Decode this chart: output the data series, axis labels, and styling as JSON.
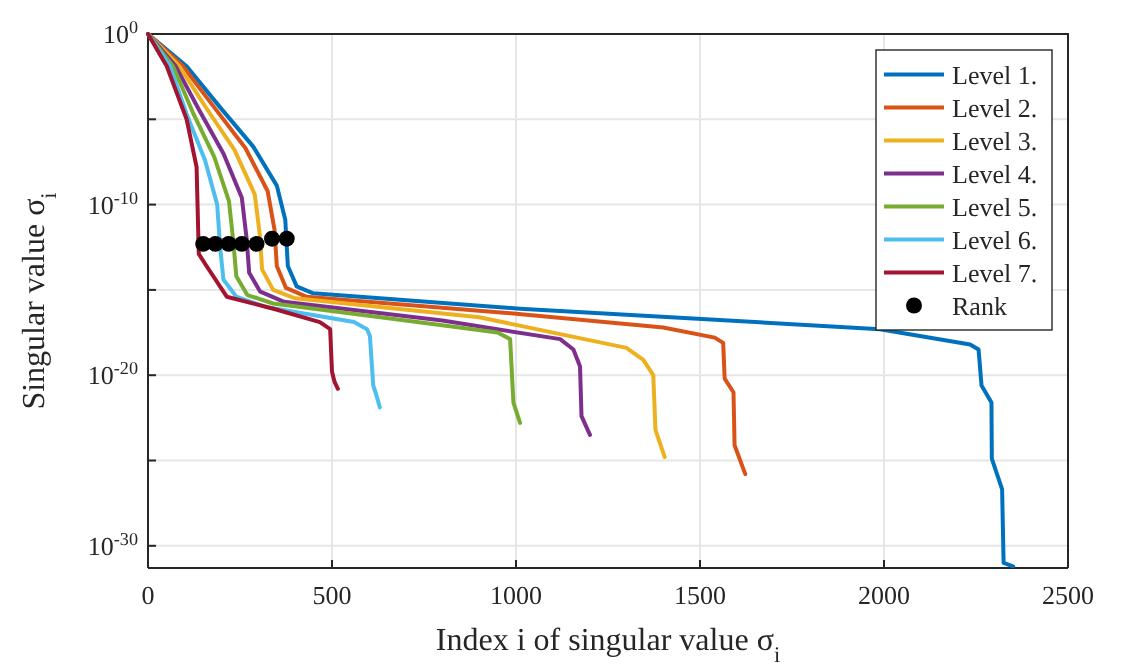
{
  "chart_data": {
    "type": "line",
    "xlabel": "Index i of singular value σ$_{i}$",
    "ylabel": "Singular value σ$_{i}$",
    "xlim": [
      0,
      2500
    ],
    "xticks": [
      0,
      500,
      1000,
      1500,
      2000,
      2500
    ],
    "ylim": [
      5e-32,
      1
    ],
    "log": true,
    "yticks": [
      {
        "value": 1,
        "label": "10$^{0}$"
      },
      {
        "value": 1e-05,
        "label": null
      },
      {
        "value": 1e-10,
        "label": "10$^{-10}$"
      },
      {
        "value": 1e-15,
        "label": null
      },
      {
        "value": 1e-20,
        "label": "10$^{-20}$"
      },
      {
        "value": 1e-25,
        "label": null
      },
      {
        "value": 1e-30,
        "label": "10$^{-30}$"
      }
    ],
    "grid": true,
    "legend": "top right",
    "line_style": "solid",
    "series": [
      {
        "name": "Level 1.",
        "color": "#0072bd",
        "x": [
          0,
          105,
          196,
          286,
          350,
          373,
          380,
          404,
          449,
          1011,
          1989,
          2234,
          2257,
          2265,
          2292,
          2293,
          2321,
          2325,
          2351
        ],
        "values": [
          1,
          0.013,
          5e-05,
          2.5e-07,
          1.3e-09,
          1.3e-11,
          2.5e-14,
          1.6e-15,
          6.3e-16,
          7.9e-17,
          5e-18,
          6.3e-19,
          3.2e-19,
          2.5e-21,
          2.5e-22,
          1.3e-25,
          2e-27,
          1e-31,
          6.3e-32
        ]
      },
      {
        "name": "Level 2.",
        "color": "#d95319",
        "x": [
          0,
          95,
          180,
          265,
          325,
          344,
          350,
          375,
          430,
          1000,
          1400,
          1540,
          1563,
          1567,
          1591,
          1594,
          1623
        ],
        "values": [
          1,
          0.013,
          5e-05,
          2e-07,
          6.3e-10,
          3.2e-12,
          2.5e-14,
          1.3e-15,
          4e-16,
          4e-17,
          6.3e-18,
          1.6e-18,
          7.9e-19,
          6.3e-21,
          1e-21,
          7.9e-25,
          1.6e-26
        ]
      },
      {
        "name": "Level 3.",
        "color": "#edb120",
        "x": [
          0,
          85,
          160,
          235,
          290,
          304,
          310,
          340,
          400,
          900,
          1300,
          1346,
          1373,
          1379,
          1404
        ],
        "values": [
          1,
          0.013,
          4e-05,
          1.6e-07,
          4e-10,
          1.6e-12,
          1.6e-14,
          1e-15,
          3.2e-16,
          2.5e-17,
          4e-19,
          7.9e-20,
          1e-20,
          6.3e-24,
          1.6e-25
        ]
      },
      {
        "name": "Level 4.",
        "color": "#7e2f8e",
        "x": [
          0,
          75,
          140,
          205,
          255,
          268,
          275,
          305,
          370,
          800,
          1120,
          1156,
          1174,
          1178,
          1201
        ],
        "values": [
          1,
          0.013,
          3.2e-05,
          1e-07,
          2.5e-10,
          1e-12,
          1e-14,
          7.9e-16,
          2e-16,
          1.6e-17,
          1.3e-18,
          3.2e-19,
          3.2e-20,
          4e-23,
          3.2e-24
        ]
      },
      {
        "name": "Level 5.",
        "color": "#77ac30",
        "x": [
          0,
          68,
          122,
          180,
          220,
          232,
          240,
          270,
          340,
          700,
          950,
          984,
          993,
          1011
        ],
        "values": [
          1,
          0.013,
          2.5e-05,
          6.3e-08,
          1.6e-10,
          6.3e-13,
          6.3e-15,
          5e-16,
          1.6e-16,
          1.6e-17,
          3.2e-18,
          1.3e-18,
          2.5e-22,
          1.6e-23
        ]
      },
      {
        "name": "Level 6.",
        "color": "#4dbeee",
        "x": [
          0,
          60,
          105,
          155,
          188,
          196,
          205,
          240,
          320,
          560,
          595,
          603,
          612,
          621,
          630
        ],
        "values": [
          1,
          0.013,
          2e-05,
          4e-08,
          1e-10,
          3.2e-13,
          4e-15,
          4e-16,
          1e-16,
          1.3e-17,
          5e-18,
          2e-18,
          2.5e-21,
          6.3e-22,
          1.3e-22
        ]
      },
      {
        "name": "Level 7.",
        "color": "#a2142f",
        "x": [
          0,
          51,
          105,
          132,
          138,
          159,
          214,
          341,
          467,
          495,
          500,
          507,
          516
        ],
        "values": [
          1,
          0.013,
          1e-05,
          1.6e-08,
          1.3e-13,
          2.5e-14,
          4e-16,
          7.9e-17,
          1.3e-17,
          5e-18,
          1.6e-20,
          4e-21,
          1.6e-21
        ]
      },
      {
        "name": "Rank",
        "type": "scatter",
        "marker": "circle",
        "color": "#000000",
        "x": [
          377,
          337,
          295,
          255,
          219,
          183,
          150
        ],
        "values": [
          1e-12,
          1e-12,
          5e-13,
          5e-13,
          5e-13,
          5e-13,
          5e-13
        ]
      }
    ]
  }
}
